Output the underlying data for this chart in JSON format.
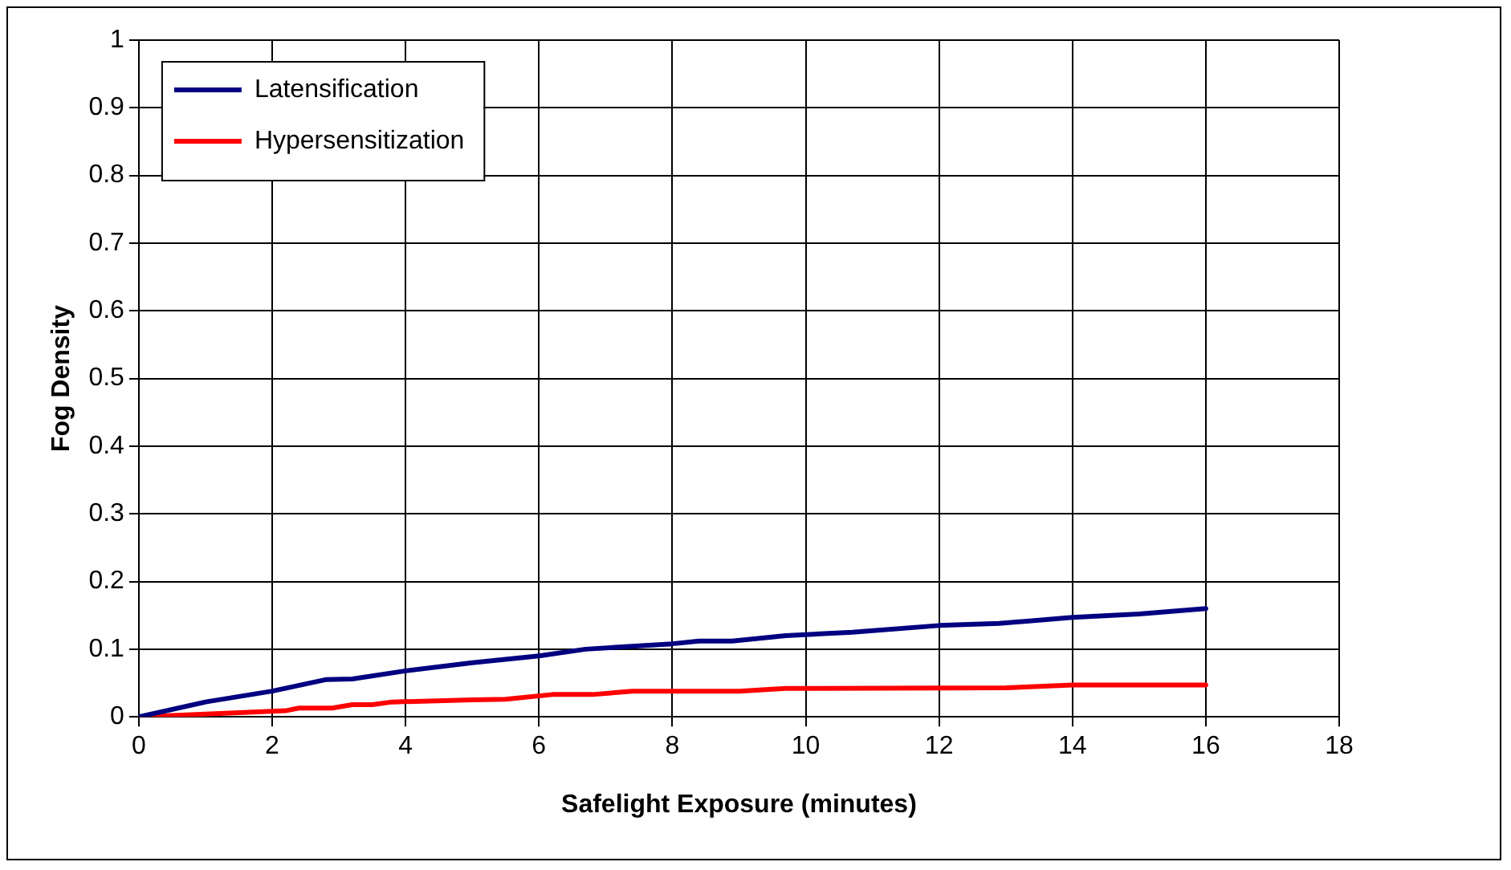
{
  "chart_data": {
    "type": "line",
    "xlabel": "Safelight Exposure (minutes)",
    "ylabel": "Fog Density",
    "xlim": [
      0,
      18
    ],
    "xticks": [
      0,
      2,
      4,
      6,
      8,
      10,
      12,
      14,
      16,
      18
    ],
    "ylim": [
      0,
      1
    ],
    "yticks": [
      0,
      0.1,
      0.2,
      0.3,
      0.4,
      0.5,
      0.6,
      0.7,
      0.8,
      0.9,
      1
    ],
    "grid": true,
    "legend": "top left",
    "marker": "none",
    "line_style": "solid",
    "series": [
      {
        "name": "Latensification",
        "color": "#000080",
        "x": [
          0,
          1,
          2,
          2.8,
          3.2,
          4,
          5,
          6,
          6.7,
          8,
          8.4,
          8.9,
          9.7,
          10.7,
          12,
          12.9,
          14,
          15,
          16
        ],
        "values": [
          0,
          0.022,
          0.038,
          0.055,
          0.056,
          0.068,
          0.08,
          0.09,
          0.1,
          0.108,
          0.112,
          0.112,
          0.12,
          0.125,
          0.135,
          0.138,
          0.147,
          0.152,
          0.16
        ]
      },
      {
        "name": "Hypersensitization",
        "color": "#ff0000",
        "x": [
          0,
          1,
          2.2,
          2.4,
          2.9,
          3.2,
          3.5,
          3.8,
          5,
          5.5,
          6.2,
          6.8,
          7.4,
          9,
          9.7,
          13,
          14,
          16
        ],
        "values": [
          0,
          0.004,
          0.009,
          0.013,
          0.013,
          0.018,
          0.018,
          0.022,
          0.025,
          0.026,
          0.033,
          0.033,
          0.038,
          0.038,
          0.042,
          0.043,
          0.047,
          0.047
        ]
      }
    ]
  }
}
